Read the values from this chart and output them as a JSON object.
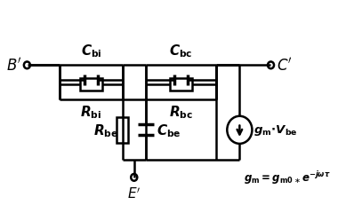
{
  "lw": 1.8,
  "lw_thick": 2.5,
  "label_B": "$\\boldsymbol{B'}$",
  "label_C": "$\\boldsymbol{C'}$",
  "label_E": "$\\boldsymbol{E'}$",
  "label_Cbi": "$\\boldsymbol{C}_{\\mathbf{bi}}$",
  "label_Rbi": "$\\boldsymbol{R}_{\\mathbf{bi}}$",
  "label_Rbe": "$\\boldsymbol{R}_{\\mathbf{be}}$",
  "label_Cbe": "$\\boldsymbol{C}_{\\mathbf{be}}$",
  "label_Cbc": "$\\boldsymbol{C}_{\\mathbf{bc}}$",
  "label_Rbc": "$\\boldsymbol{R}_{\\mathbf{bc}}$",
  "label_gm": "$\\boldsymbol{g}_{\\mathbf{m}}$$\\boldsymbol{\\cdot}$$\\boldsymbol{V}_{\\mathbf{be}}$",
  "label_gm_eq": "$\\boldsymbol{g}_{\\mathbf{m}}\\boldsymbol{=}\\boldsymbol{g}_{\\mathbf{m0}\\ast}\\boldsymbol{e}^{\\boldsymbol{-j\\omega\\tau}}$"
}
